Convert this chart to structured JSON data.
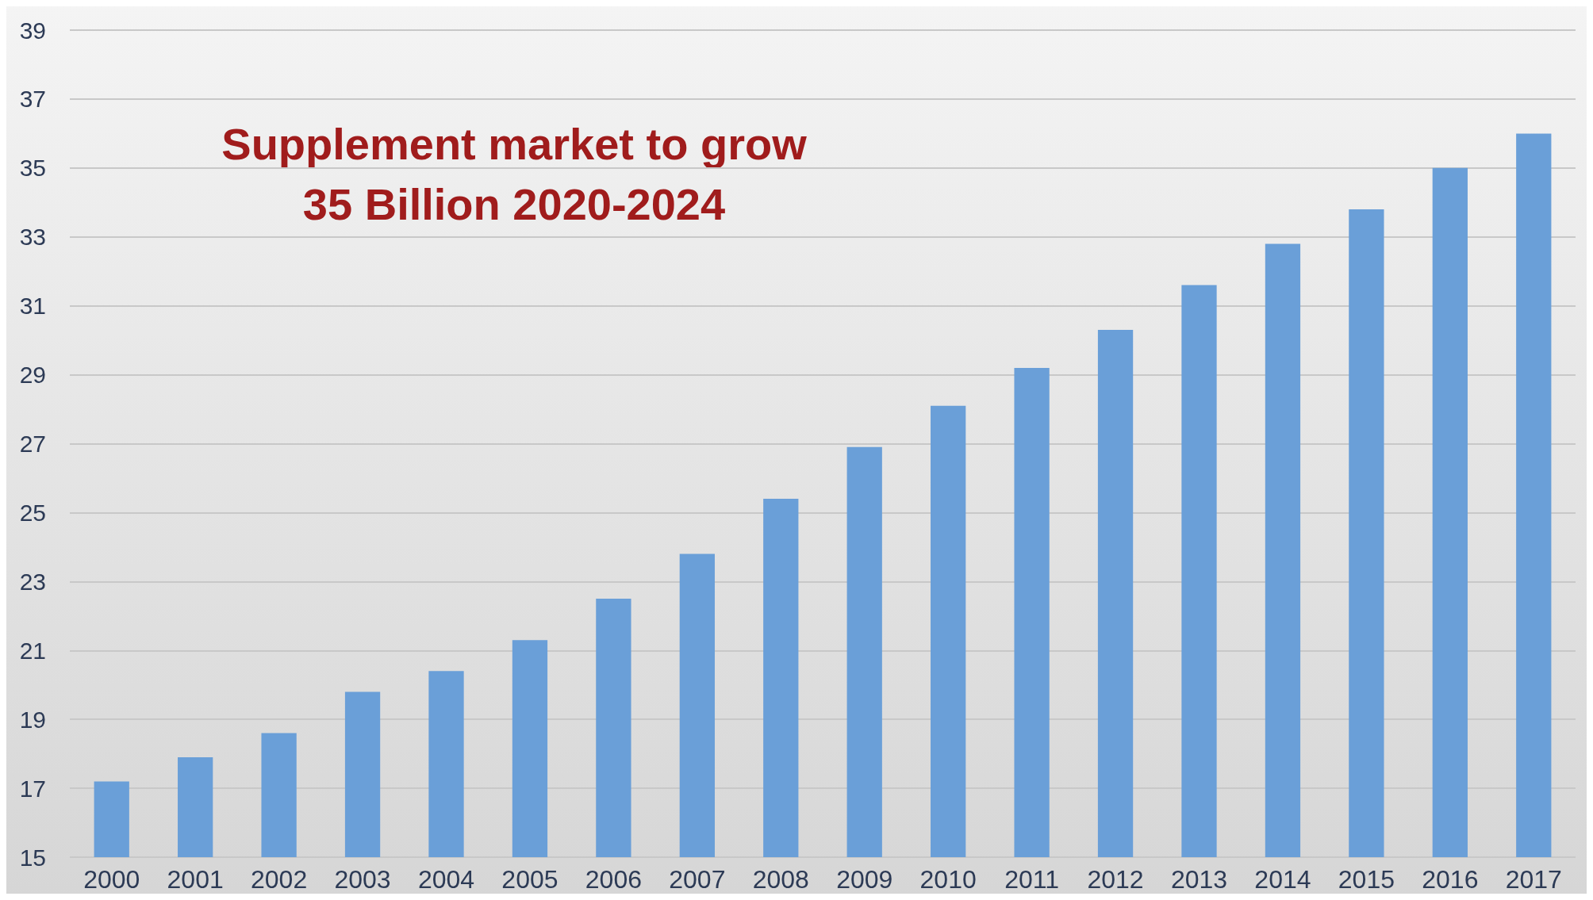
{
  "chart_data": {
    "type": "bar",
    "title": "Supplement market to grow\n35 Billion 2020-2024",
    "categories": [
      "2000",
      "2001",
      "2002",
      "2003",
      "2004",
      "2005",
      "2006",
      "2007",
      "2008",
      "2009",
      "2010",
      "2011",
      "2012",
      "2013",
      "2014",
      "2015",
      "2016",
      "2017"
    ],
    "values": [
      17.2,
      17.9,
      18.6,
      19.8,
      20.4,
      21.3,
      22.5,
      23.8,
      25.4,
      26.9,
      28.1,
      29.2,
      30.3,
      31.6,
      32.8,
      33.8,
      35.0,
      36.0
    ],
    "color": "#6a9fd8",
    "ylim": [
      15,
      39
    ],
    "yticks": [
      15,
      17,
      19,
      21,
      23,
      25,
      27,
      29,
      31,
      33,
      35,
      37,
      39
    ],
    "grid": "y"
  }
}
